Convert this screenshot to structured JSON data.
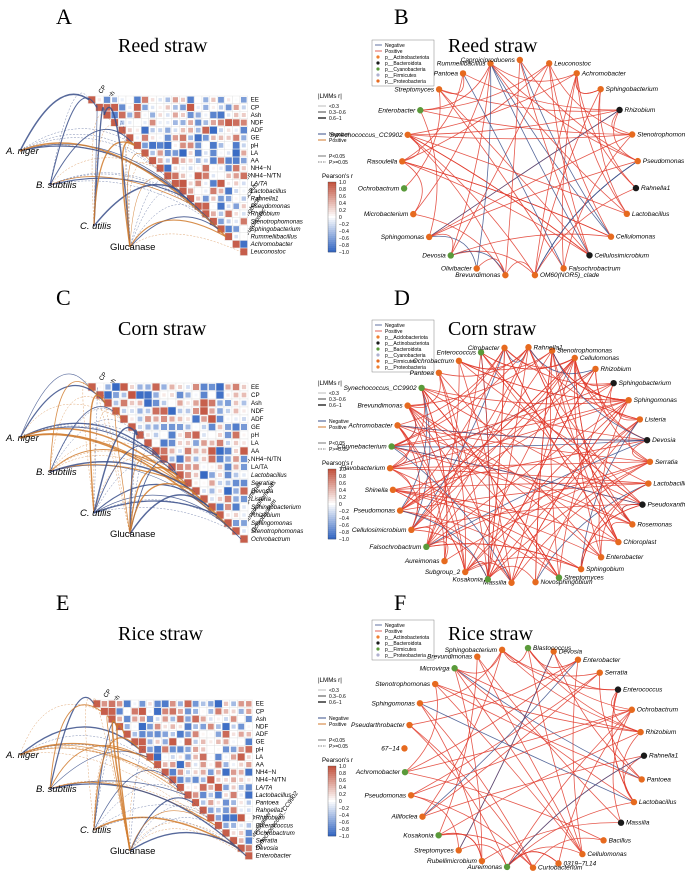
{
  "panels": [
    {
      "letter": "A",
      "title": "Reed straw",
      "cols": [
        "CP",
        "Ash",
        "NDF",
        "ADF",
        "GE",
        "pH",
        "LA",
        "AA",
        "NH4-N",
        "NH4-N/TN",
        "LA/TA",
        "Lactobacillus",
        "Rahnella1",
        "Pseudomonas",
        "Rhizobium",
        "Stenotrophomonas",
        "Sphingobacterium",
        "Rummeliibacillus",
        "Achromobacter",
        "Leuconostoc"
      ],
      "rows": [
        "EE",
        "CP",
        "Ash",
        "NDF",
        "ADF",
        "GE",
        "pH",
        "LA",
        "AA",
        "NH4−N",
        "NH4−N/TN",
        "LA/TA",
        "Lactobacillus",
        "Rahnella1",
        "Pseudomonas",
        "Rhizobium",
        "Stenotrophomonas",
        "Sphingobacterium",
        "Rummeliibacillus",
        "Achromobacter",
        "Leuconostoc"
      ],
      "sources": [
        "A. niger",
        "B. subtilis",
        "C. utilis",
        "Glucanase"
      ]
    },
    {
      "letter": "C",
      "title": "Corn straw",
      "cols": [
        "CP",
        "Ash",
        "NDF",
        "ADF",
        "GE",
        "pH",
        "LA",
        "AA",
        "NH4-N",
        "NH4-N/TN",
        "LA/TA",
        "Lactobacillus",
        "Serratia",
        "Devosia",
        "Listeria",
        "Sphingobacterium",
        "Rhizobium",
        "Sphingomonas",
        "Stenotrophomonas",
        "Ochrobactrum"
      ],
      "rows": [
        "EE",
        "CP",
        "Ash",
        "NDF",
        "ADF",
        "GE",
        "pH",
        "LA",
        "AA",
        "NH4−N/TN",
        "LA/TA",
        "Lactobacillus",
        "Serratia",
        "Devosia",
        "Listeria",
        "Sphingobacterium",
        "Rhizobium",
        "Sphingomonas",
        "Stenotrophomonas",
        "Ochrobactrum"
      ],
      "sources": [
        "A. niger",
        "B. subtilis",
        "C. utilis",
        "Glucanase"
      ]
    },
    {
      "letter": "E",
      "title": "Rice straw",
      "cols": [
        "CP",
        "Ash",
        "NDF",
        "ADF",
        "GE",
        "pH",
        "LA",
        "AA",
        "NH4-N",
        "NH4-N/TN",
        "LA/TA",
        "Lactobacillus",
        "Pantoea",
        "Rahnella1",
        "Rhizobium",
        "Enterococcus",
        "Ochrobactrum",
        "Serratia",
        "Devosia",
        "Enterobacter",
        "Synechococcus_CC9902"
      ],
      "rows": [
        "EE",
        "CP",
        "Ash",
        "NDF",
        "ADF",
        "GE",
        "pH",
        "LA",
        "AA",
        "NH4−N",
        "NH4−N/TN",
        "LA/TA",
        "Lactobacillus",
        "Pantoea",
        "Rahnella1",
        "Rhizobium",
        "Enterococcus",
        "Ochrobactrum",
        "Serratia",
        "Devosia",
        "Enterobacter"
      ],
      "sources": [
        "A. niger",
        "B. subtilis",
        "C. utilis",
        "Glucanase"
      ]
    }
  ],
  "mantel_legend": {
    "heading": "|LMMs r|",
    "r_items": [
      "<0.3",
      "0.3−0.6",
      "0.6−1"
    ],
    "sign_items": [
      "Negative",
      "Positive"
    ],
    "p_items": [
      "P<0.05",
      "P>=0.05"
    ],
    "colorbar_title": "Pearson's r",
    "colorbar_ticks": [
      "1.0",
      "0.8",
      "0.6",
      "0.4",
      "0.2",
      "0",
      "−0.2",
      "−0.4",
      "−0.6",
      "−0.8",
      "−1.0"
    ]
  },
  "networks": [
    {
      "letter": "B",
      "title": "Reed straw",
      "legend": [
        "Negative",
        "Positive",
        "p__Actinobacteriota",
        "p__Bacteroidota",
        "p__Cyanobacteria",
        "p__Firmicutes",
        "p__Proteobacteria"
      ],
      "nodes": [
        "Leuconostoc",
        "Achromobacter",
        "Sphingobacterium",
        "Rhizobium",
        "Stenotrophomonas",
        "Pseudomonas",
        "Rahnella1",
        "Lactobacillus",
        "Cellulomonas",
        "Cellulosimicrobium",
        "Falsochrobactrum",
        "OM60(NOR5)_clade",
        "Brevundimonas",
        "Olivibacter",
        "Devosia",
        "Sphingomonas",
        "Microbacterium",
        "Ochrobactrum",
        "Rasoulella",
        "Synechococcus_CC9902",
        "Enterobacter",
        "Streptomyces",
        "Pantoea",
        "Rummeliibacillus",
        "Caproiciproducens"
      ]
    },
    {
      "letter": "D",
      "title": "Corn straw",
      "legend": [
        "Negative",
        "Positive",
        "p__Acidobacteriota",
        "p__Actinobacteriota",
        "p__Bacteroidota",
        "p__Cyanobacteria",
        "p__Firmicutes",
        "p__Proteobacteria"
      ],
      "nodes": [
        "Stenotrophomonas",
        "Cellulomonas",
        "Rhizobium",
        "Sphingobacterium",
        "Sphingomonas",
        "Listeria",
        "Devosia",
        "Serratia",
        "Lactobacillus",
        "Pseudoxanthomonas",
        "Rosemonas",
        "Chloroplast",
        "Enterobacter",
        "Sphingobium",
        "Streptomyces",
        "Novosphingobium",
        "Massilia",
        "Kosakonia",
        "Subgroup_2",
        "Aureimonas",
        "Falsochrobactrum",
        "Cellulosimicrobium",
        "Pseudomonas",
        "Shinella",
        "Flavobacterium",
        "Corynebacterium",
        "Achromobacter",
        "Brevundimonas",
        "Synechococcus_CC9902",
        "Pantoea",
        "Ochrobactrum",
        "Enterococcus",
        "Citrobacter",
        "Rahnella1"
      ]
    },
    {
      "letter": "F",
      "title": "Rice straw",
      "legend": [
        "Negative",
        "Positive",
        "p__Actinobacteriota",
        "p__Bacteroidota",
        "p__Firmicutes",
        "p__Proteobacteria"
      ],
      "nodes": [
        "Devosia",
        "Enterobacter",
        "Serratia",
        "Enterococcus",
        "Ochrobactrum",
        "Rhizobium",
        "Rahnella1",
        "Pantoea",
        "Lactobacillus",
        "Massilia",
        "Bacillus",
        "Cellulomonas",
        "0319−7L14",
        "Curtobacterium",
        "Aureimonas",
        "Rubellimicrobium",
        "Streptomyces",
        "Kosakonia",
        "Allifoclea",
        "Pseudomonas",
        "Achromobacter",
        "67−14",
        "Pseudarthrobacter",
        "Sphingomonas",
        "Stenotrophomonas",
        "Microvirga",
        "Brevundimonas",
        "Sphingobacterium",
        "Blastococcus"
      ]
    }
  ]
}
